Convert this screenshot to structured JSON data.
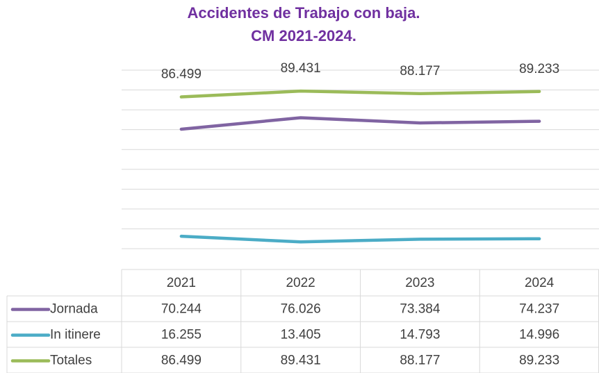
{
  "chart_data": {
    "type": "line",
    "title": [
      "Accidentes de Trabajo con baja.",
      "CM 2021-2024."
    ],
    "categories": [
      "2021",
      "2022",
      "2023",
      "2024"
    ],
    "series": [
      {
        "name": "Jornada",
        "color": "#8064a2",
        "values": [
          70244,
          76026,
          73384,
          74237
        ],
        "value_labels": [
          "70.244",
          "76.026",
          "73.384",
          "74.237"
        ]
      },
      {
        "name": "In itinere",
        "color": "#4bacc6",
        "values": [
          16255,
          13405,
          14793,
          14996
        ],
        "value_labels": [
          "16.255",
          "13.405",
          "14.793",
          "14.996"
        ]
      },
      {
        "name": "Totales",
        "color": "#9bbb59",
        "values": [
          86499,
          89431,
          88177,
          89233
        ],
        "value_labels": [
          "86.499",
          "89.431",
          "88.177",
          "89.233"
        ]
      }
    ],
    "data_labels_series": 2,
    "ylim": [
      10000,
      100000
    ],
    "yticks": [
      10000,
      20000,
      30000,
      40000,
      50000,
      60000,
      70000,
      80000,
      90000,
      100000
    ],
    "grid": true,
    "title_color": "#7030a0"
  }
}
